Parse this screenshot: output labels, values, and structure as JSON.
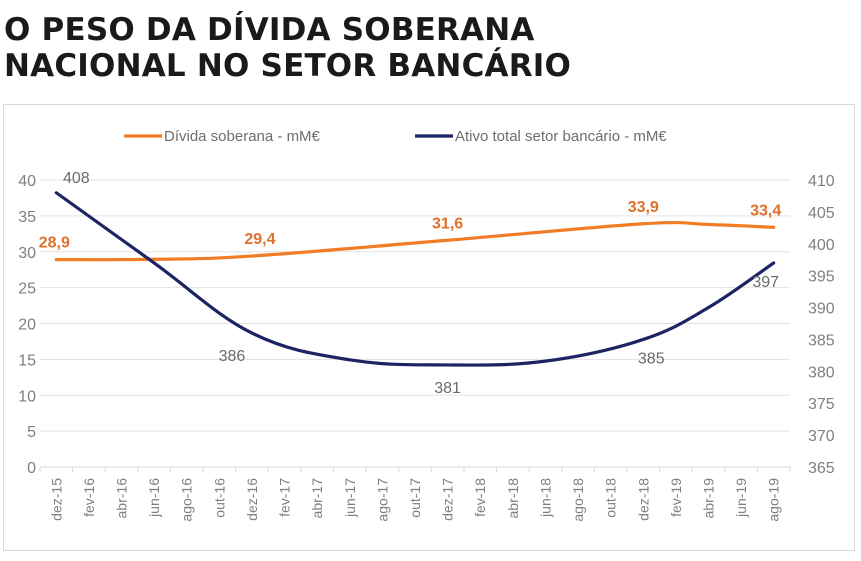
{
  "title_line1": "O PESO DA DÍVIDA SOBERANA",
  "title_line2": "NACIONAL NO SETOR BANCÁRIO",
  "chart_data": {
    "type": "line",
    "title": "O PESO DA DÍVIDA SOBERANA NACIONAL NO SETOR BANCÁRIO",
    "categories": [
      "dez-15",
      "fev-16",
      "abr-16",
      "jun-16",
      "ago-16",
      "out-16",
      "dez-16",
      "fev-17",
      "abr-17",
      "jun-17",
      "ago-17",
      "out-17",
      "dez-17",
      "fev-18",
      "abr-18",
      "jun-18",
      "ago-18",
      "out-18",
      "dez-18",
      "fev-19",
      "abr-19",
      "jun-19",
      "ago-19"
    ],
    "legend_position": "top",
    "grid": true,
    "y_left": {
      "min": 0,
      "max": 40,
      "step": 5,
      "ticks": [
        "0",
        "5",
        "10",
        "15",
        "20",
        "25",
        "30",
        "35",
        "40"
      ]
    },
    "y_right": {
      "min": 365,
      "max": 410,
      "step": 5,
      "ticks": [
        "365",
        "370",
        "375",
        "380",
        "385",
        "390",
        "395",
        "400",
        "405",
        "410"
      ]
    },
    "series": [
      {
        "name": "Dívida soberana - mM€",
        "axis": "left",
        "color": "#f07d26",
        "key_points": [
          {
            "category": "dez-15",
            "value": 28.9,
            "label": "28,9"
          },
          {
            "category": "dez-16",
            "value": 29.4,
            "label": "29,4"
          },
          {
            "category": "dez-17",
            "value": 31.6,
            "label": "31,6"
          },
          {
            "category": "dez-18",
            "value": 33.9,
            "label": "33,9"
          },
          {
            "category": "ago-19",
            "value": 33.4,
            "label": "33,4"
          }
        ]
      },
      {
        "name": "Ativo total setor bancário - mM€",
        "axis": "right",
        "color": "#1c2463",
        "key_points": [
          {
            "category": "dez-15",
            "value": 408,
            "label": "408"
          },
          {
            "category": "dez-16",
            "value": 386,
            "label": "386"
          },
          {
            "category": "dez-17",
            "value": 381,
            "label": "381"
          },
          {
            "category": "dez-18",
            "value": 385,
            "label": "385"
          },
          {
            "category": "ago-19",
            "value": 397,
            "label": "397"
          }
        ]
      }
    ]
  }
}
